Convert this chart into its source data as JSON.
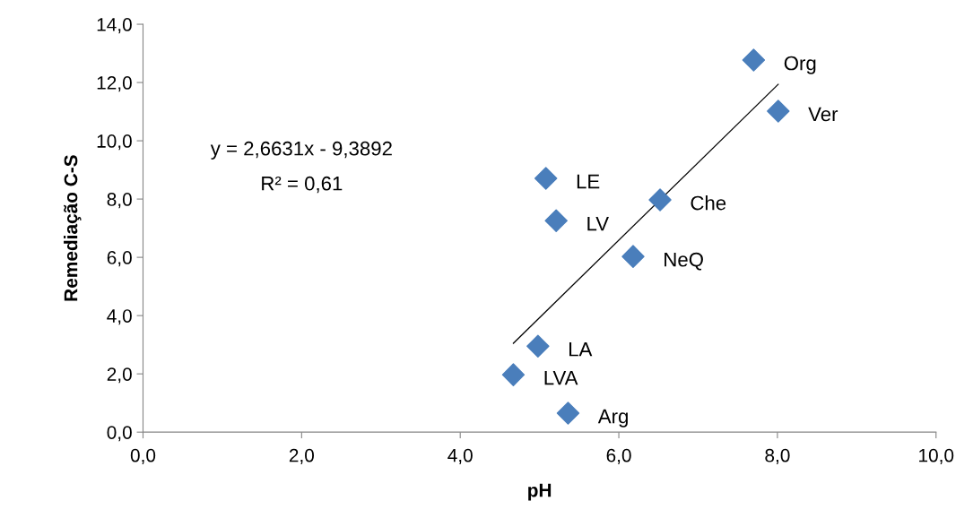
{
  "chart_data": {
    "type": "scatter",
    "xlabel": "pH",
    "ylabel": "Remediação C-S",
    "xlim": [
      0,
      10
    ],
    "ylim": [
      0,
      14
    ],
    "xticks": [
      {
        "value": 0,
        "label": "0,0"
      },
      {
        "value": 2,
        "label": "2,0"
      },
      {
        "value": 4,
        "label": "4,0"
      },
      {
        "value": 6,
        "label": "6,0"
      },
      {
        "value": 8,
        "label": "8,0"
      },
      {
        "value": 10,
        "label": "10,0"
      }
    ],
    "yticks": [
      {
        "value": 0,
        "label": "0,0"
      },
      {
        "value": 2,
        "label": "2,0"
      },
      {
        "value": 4,
        "label": "4,0"
      },
      {
        "value": 6,
        "label": "6,0"
      },
      {
        "value": 8,
        "label": "8,0"
      },
      {
        "value": 10,
        "label": "10,0"
      },
      {
        "value": 12,
        "label": "12,0"
      },
      {
        "value": 14,
        "label": "14,0"
      }
    ],
    "grid": false,
    "legend": false,
    "series": [
      {
        "marker": "diamond",
        "color": "#4a7ebb",
        "x": [
          7.7,
          8.01,
          5.08,
          6.52,
          5.21,
          6.18,
          4.98,
          4.67,
          5.36
        ],
        "values": [
          12.77,
          11.02,
          8.71,
          7.97,
          7.26,
          6.03,
          2.95,
          1.97,
          0.65
        ]
      },
      {
        "type": "line",
        "marker": "none",
        "color": "#000000",
        "x": [
          4.67,
          8.01
        ],
        "values": [
          3.05,
          11.94
        ]
      }
    ],
    "annotations": [
      {
        "text": "Org",
        "x": 7.7,
        "y": 12.77
      },
      {
        "text": "Ver",
        "x": 8.01,
        "y": 11.02
      },
      {
        "text": "LE",
        "x": 5.08,
        "y": 8.71
      },
      {
        "text": "Che",
        "x": 6.52,
        "y": 7.97
      },
      {
        "text": "LV",
        "x": 5.21,
        "y": 7.26
      },
      {
        "text": "NeQ",
        "x": 6.18,
        "y": 6.03
      },
      {
        "text": "LA",
        "x": 4.98,
        "y": 2.95
      },
      {
        "text": "LVA",
        "x": 4.67,
        "y": 1.97
      },
      {
        "text": "Arg",
        "x": 5.36,
        "y": 0.65
      },
      "y = 2,6631x - 9,3892",
      "R² = 0,61"
    ]
  }
}
